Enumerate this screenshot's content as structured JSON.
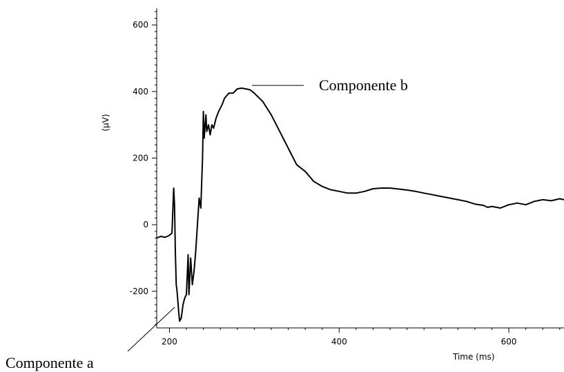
{
  "chart_data": {
    "type": "line",
    "title": "",
    "xlabel": "Time (ms)",
    "ylabel": "(µV)",
    "xlim": [
      185,
      665
    ],
    "ylim": [
      -310,
      650
    ],
    "xticks": [
      200,
      400,
      600
    ],
    "yticks": [
      600,
      400,
      200,
      0,
      -200
    ],
    "xtick_labels": [
      "200",
      "400",
      "600"
    ],
    "ytick_labels": [
      "600",
      "400",
      "200",
      "0",
      "-200"
    ],
    "grid": false,
    "series": [
      {
        "color": "#000000",
        "points": [
          [
            185,
            -40
          ],
          [
            190,
            -35
          ],
          [
            195,
            -38
          ],
          [
            200,
            -32
          ],
          [
            203,
            -25
          ],
          [
            205,
            110
          ],
          [
            206,
            60
          ],
          [
            207,
            -80
          ],
          [
            208,
            -180
          ],
          [
            209,
            -200
          ],
          [
            211,
            -265
          ],
          [
            212,
            -290
          ],
          [
            214,
            -280
          ],
          [
            216,
            -240
          ],
          [
            218,
            -220
          ],
          [
            220,
            -210
          ],
          [
            222,
            -90
          ],
          [
            223,
            -210
          ],
          [
            225,
            -100
          ],
          [
            227,
            -180
          ],
          [
            229,
            -140
          ],
          [
            231,
            -80
          ],
          [
            233,
            0
          ],
          [
            235,
            80
          ],
          [
            237,
            50
          ],
          [
            239,
            200
          ],
          [
            240,
            340
          ],
          [
            241,
            260
          ],
          [
            243,
            330
          ],
          [
            244,
            280
          ],
          [
            246,
            300
          ],
          [
            248,
            270
          ],
          [
            250,
            300
          ],
          [
            252,
            290
          ],
          [
            255,
            320
          ],
          [
            258,
            340
          ],
          [
            262,
            360
          ],
          [
            265,
            380
          ],
          [
            270,
            395
          ],
          [
            275,
            395
          ],
          [
            280,
            408
          ],
          [
            285,
            410
          ],
          [
            290,
            408
          ],
          [
            295,
            405
          ],
          [
            300,
            395
          ],
          [
            310,
            370
          ],
          [
            320,
            330
          ],
          [
            330,
            280
          ],
          [
            340,
            230
          ],
          [
            350,
            180
          ],
          [
            360,
            160
          ],
          [
            370,
            130
          ],
          [
            380,
            115
          ],
          [
            390,
            105
          ],
          [
            400,
            100
          ],
          [
            410,
            95
          ],
          [
            420,
            95
          ],
          [
            430,
            100
          ],
          [
            440,
            108
          ],
          [
            450,
            110
          ],
          [
            460,
            110
          ],
          [
            470,
            107
          ],
          [
            480,
            104
          ],
          [
            490,
            100
          ],
          [
            500,
            95
          ],
          [
            510,
            90
          ],
          [
            520,
            85
          ],
          [
            530,
            80
          ],
          [
            540,
            75
          ],
          [
            550,
            70
          ],
          [
            560,
            62
          ],
          [
            570,
            58
          ],
          [
            575,
            52
          ],
          [
            580,
            55
          ],
          [
            590,
            50
          ],
          [
            600,
            60
          ],
          [
            610,
            65
          ],
          [
            620,
            60
          ],
          [
            630,
            70
          ],
          [
            640,
            75
          ],
          [
            650,
            72
          ],
          [
            660,
            78
          ],
          [
            665,
            75
          ]
        ]
      }
    ],
    "annotations": [
      {
        "text": "Componente b",
        "x": 295,
        "y": 410
      },
      {
        "text": "Componente a",
        "x": 212,
        "y": -290
      }
    ]
  }
}
